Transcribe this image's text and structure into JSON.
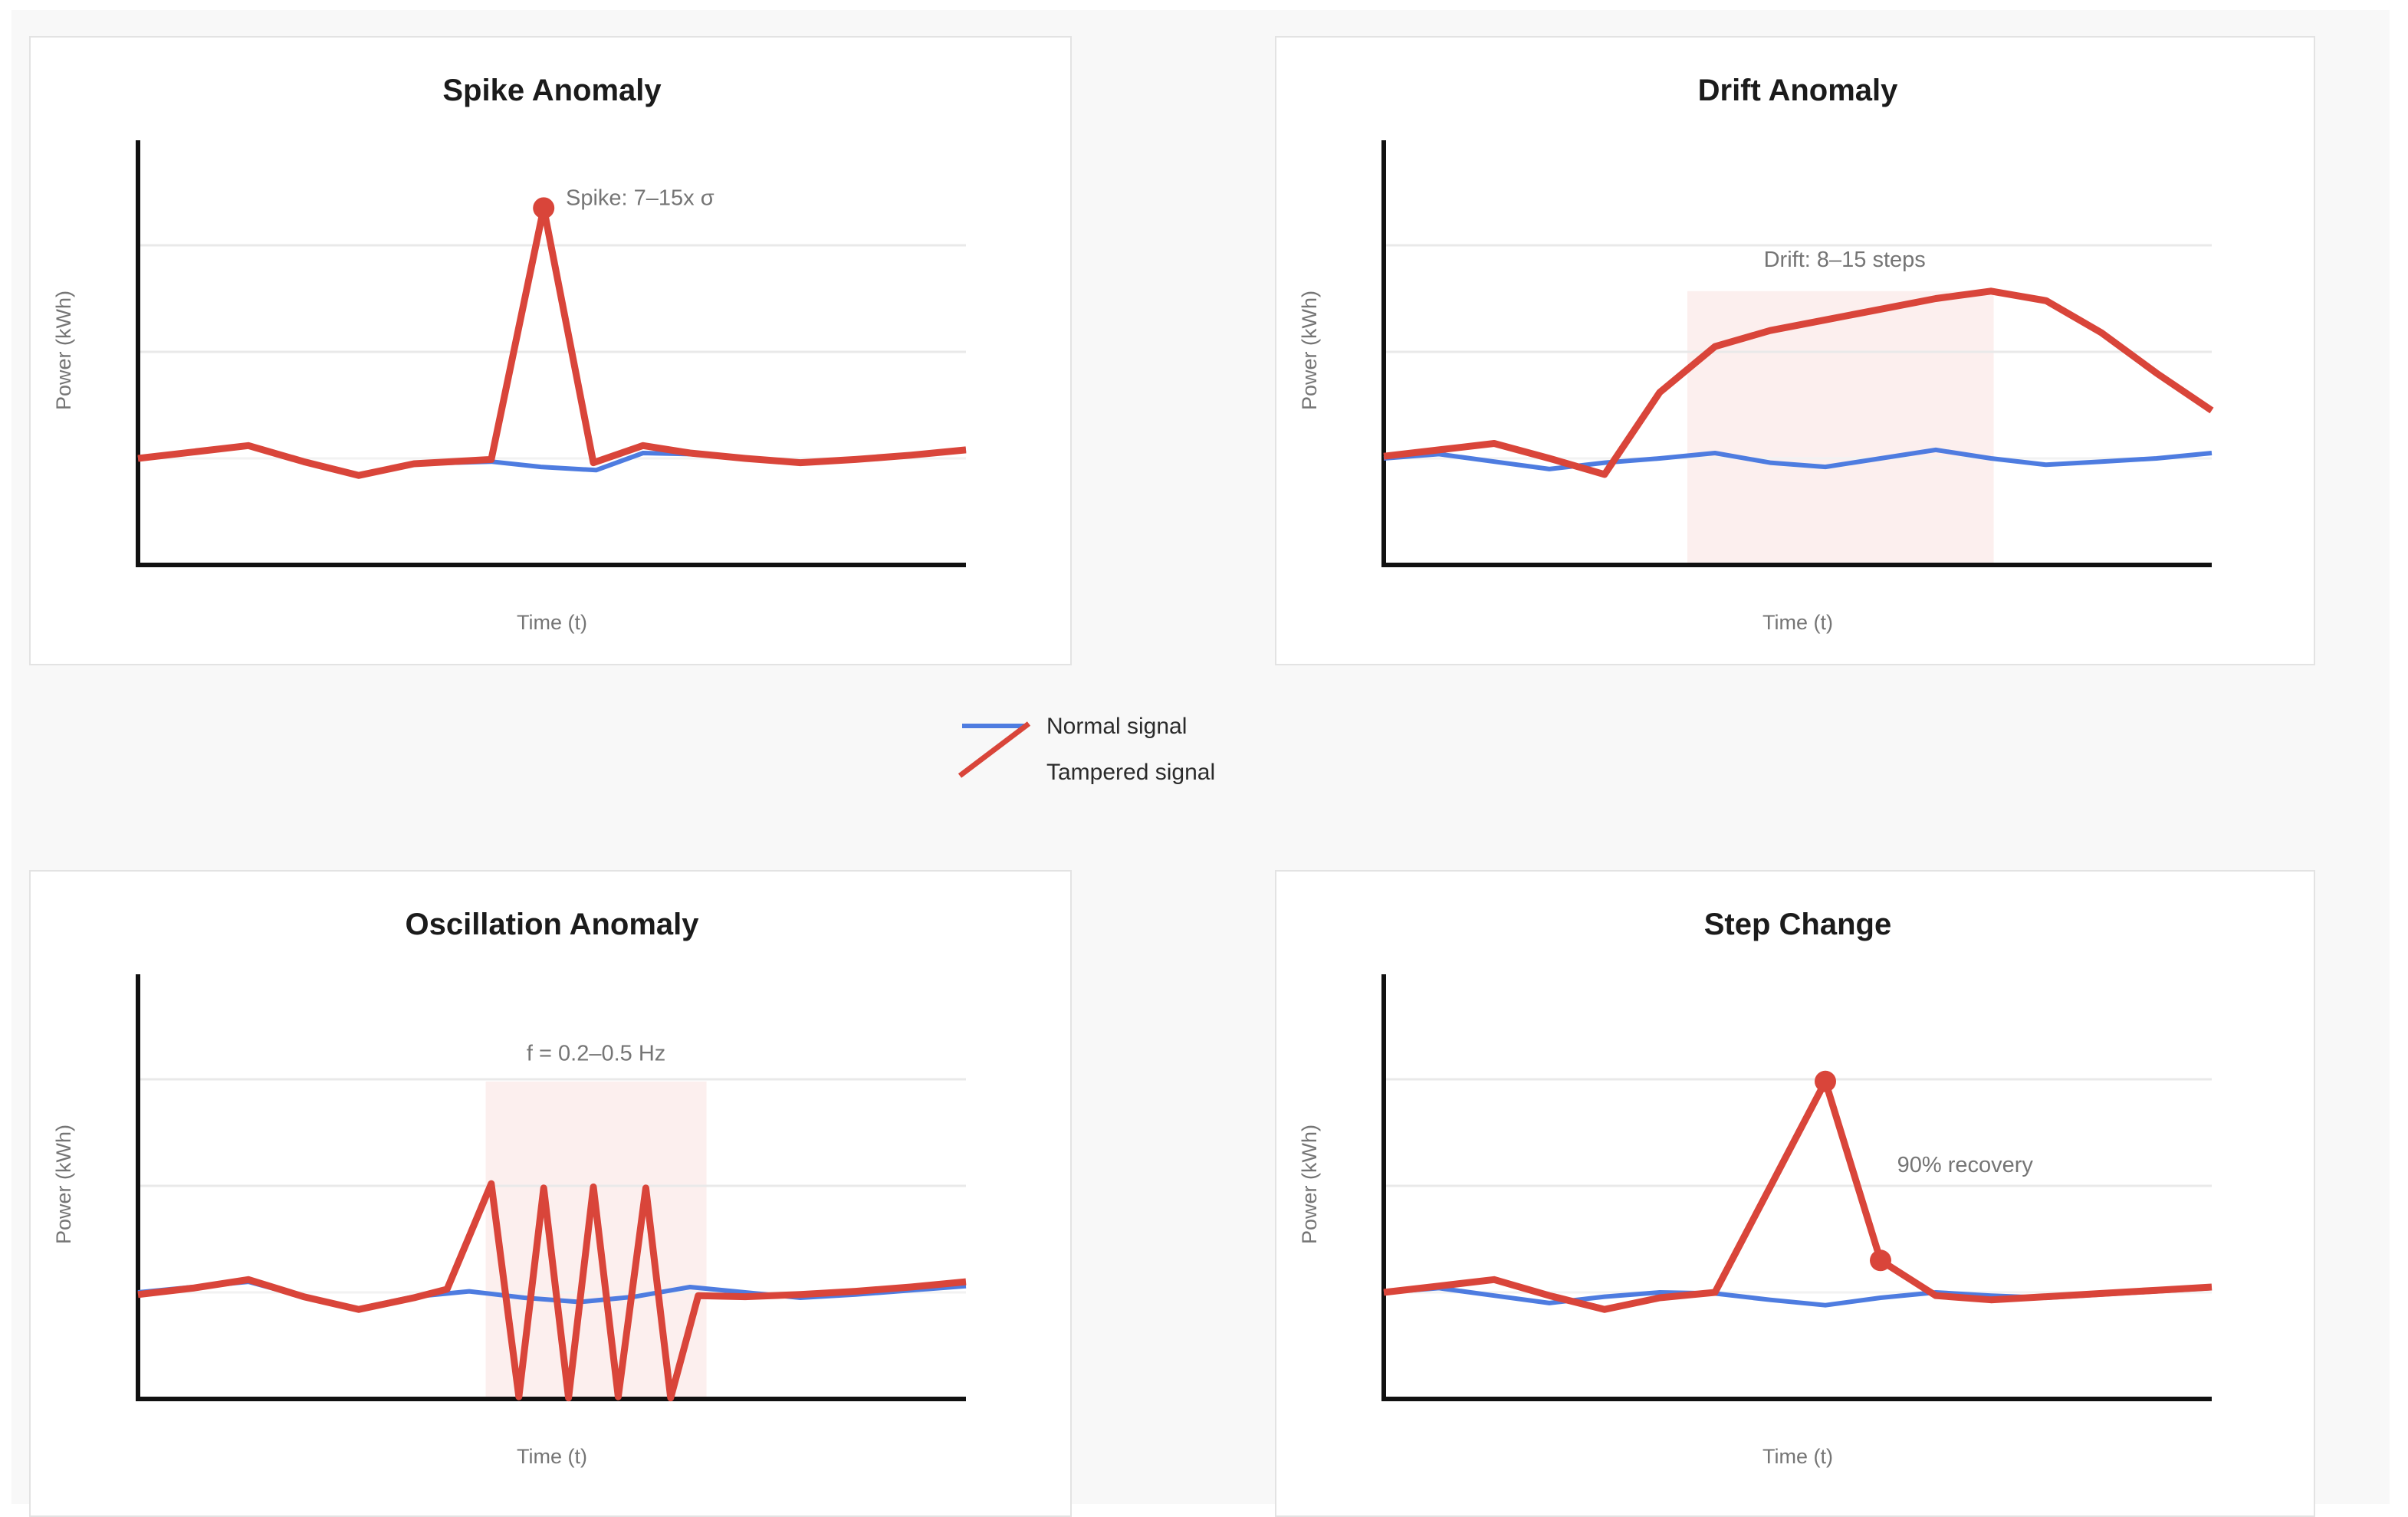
{
  "page": {
    "background": "#f8f8f8",
    "card_background": "#ffffff",
    "card_border": "#e3e3e3"
  },
  "colors": {
    "normal_signal": "#4e7ce0",
    "tampered_signal": "#d9453a",
    "anomaly_shade": "#d9453a",
    "anomaly_shade_opacity": 0.085,
    "axis": "#111111",
    "gridline": "#e9e9e9",
    "gridline_faint": "#f2f2f2",
    "title_text": "#1b1b1b",
    "muted_text": "#757575"
  },
  "legend": {
    "items": [
      {
        "label": "Normal signal",
        "color": "#4e7ce0",
        "swatch": "horizontal-line"
      },
      {
        "label": "Tampered signal",
        "color": "#d9453a",
        "swatch": "diagonal-line"
      }
    ]
  },
  "chart_data": [
    {
      "type": "line",
      "id": "spike",
      "title": "Spike Anomaly",
      "xlabel": "Time (t)",
      "ylabel": "Power (kWh)",
      "ylim": [
        0,
        3.95
      ],
      "xlim": [
        0,
        15
      ],
      "grid": [
        {
          "v": 1,
          "faint": true
        },
        {
          "v": 2,
          "faint": false
        },
        {
          "v": 3,
          "faint": false
        }
      ],
      "annotation": {
        "text": "Spike: 7–15x σ",
        "t": 7.75,
        "v": 3.45,
        "anchor": "start"
      },
      "shade": null,
      "markers": [
        {
          "t": 7.35,
          "v": 3.35
        }
      ],
      "series": [
        {
          "name": "Normal signal",
          "role": "normal",
          "x": [
            0,
            1,
            2,
            3,
            4,
            5,
            6.4,
            7.3,
            8.3,
            9.15,
            10,
            11,
            12,
            13,
            14,
            15
          ],
          "v": [
            1.0,
            1.06,
            1.12,
            0.97,
            0.84,
            0.95,
            0.97,
            0.92,
            0.89,
            1.05,
            1.04,
            1.0,
            0.96,
            0.99,
            1.03,
            1.08
          ]
        },
        {
          "name": "Tampered signal",
          "role": "tampered",
          "x": [
            0,
            1,
            2,
            3,
            4,
            5,
            6.4,
            7.35,
            8.25,
            9.15,
            10,
            11,
            12,
            13,
            14,
            15
          ],
          "v": [
            1.0,
            1.06,
            1.12,
            0.97,
            0.84,
            0.95,
            0.99,
            3.35,
            0.96,
            1.12,
            1.05,
            1.0,
            0.96,
            0.99,
            1.03,
            1.08
          ]
        }
      ]
    },
    {
      "type": "line",
      "id": "drift",
      "title": "Drift Anomaly",
      "xlabel": "Time (t)",
      "ylabel": "Power (kWh)",
      "ylim": [
        0,
        3.95
      ],
      "xlim": [
        0,
        15
      ],
      "grid": [
        {
          "v": 1,
          "faint": true
        },
        {
          "v": 2,
          "faint": false
        },
        {
          "v": 3,
          "faint": false
        }
      ],
      "annotation": {
        "text": "Drift: 8–15 steps",
        "t": 8.35,
        "v": 2.87,
        "anchor": "middle"
      },
      "shade": {
        "t0": 5.5,
        "t1": 11.05,
        "vtop": 2.57
      },
      "markers": [],
      "series": [
        {
          "name": "Normal signal",
          "role": "normal",
          "x": [
            0,
            1,
            2,
            3,
            4,
            5,
            6,
            7,
            8,
            9,
            10,
            11,
            12,
            13,
            14,
            15
          ],
          "v": [
            1.0,
            1.04,
            0.97,
            0.9,
            0.96,
            1.0,
            1.05,
            0.96,
            0.92,
            1.0,
            1.08,
            1.0,
            0.94,
            0.97,
            1.0,
            1.05
          ]
        },
        {
          "name": "Tampered signal",
          "role": "tampered",
          "x": [
            0,
            1,
            2,
            3,
            4,
            5,
            6,
            7,
            8,
            9,
            10,
            11,
            12,
            13,
            14,
            15
          ],
          "v": [
            1.02,
            1.08,
            1.14,
            1.0,
            0.85,
            1.62,
            2.05,
            2.2,
            2.3,
            2.4,
            2.5,
            2.57,
            2.48,
            2.18,
            1.8,
            1.45
          ]
        }
      ]
    },
    {
      "type": "line",
      "id": "oscillation",
      "title": "Oscillation Anomaly",
      "xlabel": "Time (t)",
      "ylabel": "Power (kWh)",
      "ylim": [
        0,
        3.95
      ],
      "xlim": [
        0,
        15
      ],
      "grid": [
        {
          "v": 1,
          "faint": true
        },
        {
          "v": 2,
          "faint": false
        },
        {
          "v": 3,
          "faint": false
        }
      ],
      "annotation": {
        "text": "f = 0.2–0.5 Hz",
        "t": 8.3,
        "v": 3.25,
        "anchor": "middle"
      },
      "shade": {
        "t0": 6.3,
        "t1": 10.3,
        "vtop": 2.98
      },
      "markers": [],
      "series": [
        {
          "name": "Normal signal",
          "role": "normal",
          "x": [
            0,
            1,
            2,
            3,
            4,
            5,
            6,
            7,
            8,
            9,
            10,
            11,
            12,
            13,
            14,
            15
          ],
          "v": [
            1.0,
            1.05,
            1.1,
            0.96,
            0.85,
            0.96,
            1.01,
            0.95,
            0.91,
            0.96,
            1.05,
            1.0,
            0.95,
            0.98,
            1.02,
            1.06
          ]
        },
        {
          "name": "Tampered signal",
          "role": "tampered",
          "x": [
            0,
            1,
            2,
            3,
            4,
            5,
            5.6,
            6.4,
            6.9,
            7.35,
            7.8,
            8.25,
            8.7,
            9.2,
            9.65,
            10.15,
            11,
            12,
            13,
            14,
            15
          ],
          "v": [
            0.98,
            1.04,
            1.12,
            0.96,
            0.84,
            0.95,
            1.03,
            2.02,
            0.02,
            1.98,
            0.01,
            1.99,
            0.02,
            1.98,
            0.01,
            0.97,
            0.96,
            0.98,
            1.01,
            1.05,
            1.1
          ]
        }
      ]
    },
    {
      "type": "line",
      "id": "step",
      "title": "Step Change",
      "xlabel": "Time (t)",
      "ylabel": "Power (kWh)",
      "ylim": [
        0,
        3.95
      ],
      "xlim": [
        0,
        15
      ],
      "grid": [
        {
          "v": 1,
          "faint": true
        },
        {
          "v": 2,
          "faint": false
        },
        {
          "v": 3,
          "faint": false
        }
      ],
      "annotation": {
        "text": "90% recovery",
        "t": 9.3,
        "v": 2.2,
        "anchor": "start"
      },
      "shade": null,
      "markers": [
        {
          "t": 8,
          "v": 2.98
        },
        {
          "t": 9,
          "v": 1.3
        }
      ],
      "series": [
        {
          "name": "Normal signal",
          "role": "normal",
          "x": [
            0,
            1,
            2,
            3,
            4,
            5,
            6,
            7,
            8,
            9,
            10,
            11,
            12,
            13,
            14,
            15
          ],
          "v": [
            1.0,
            1.04,
            0.97,
            0.9,
            0.96,
            1.0,
            0.99,
            0.93,
            0.88,
            0.95,
            1.0,
            0.97,
            0.95,
            0.98,
            1.01,
            1.04
          ]
        },
        {
          "name": "Tampered signal",
          "role": "tampered",
          "x": [
            0,
            1,
            2,
            3,
            4,
            5,
            6,
            7,
            8,
            9,
            10,
            11,
            12,
            13,
            14,
            15
          ],
          "v": [
            1.0,
            1.06,
            1.12,
            0.97,
            0.84,
            0.95,
            1.0,
            1.99,
            2.98,
            1.3,
            0.97,
            0.93,
            0.96,
            0.99,
            1.02,
            1.05
          ]
        }
      ]
    }
  ]
}
